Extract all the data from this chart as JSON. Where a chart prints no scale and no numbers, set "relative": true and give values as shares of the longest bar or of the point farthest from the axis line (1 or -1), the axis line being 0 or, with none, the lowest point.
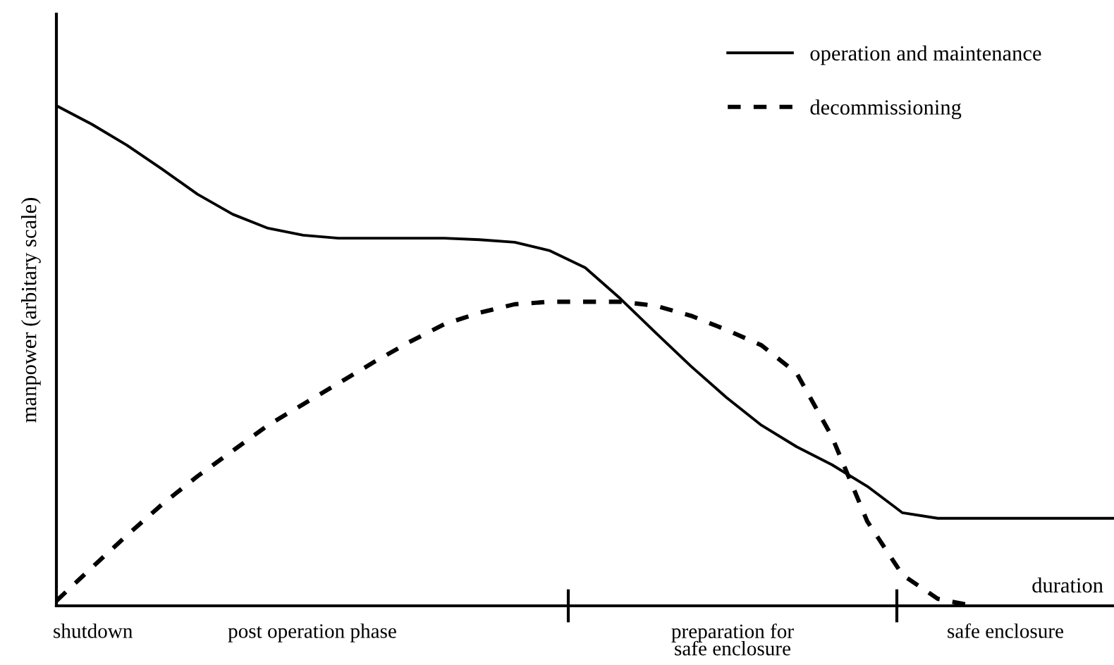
{
  "chart_data": {
    "type": "line",
    "relative": true,
    "ylabel": "manpower (arbitary scale)",
    "xlabel": "duration",
    "categories": [
      null,
      null,
      null,
      null,
      null,
      null,
      null,
      null,
      null,
      null,
      null,
      null,
      null,
      null,
      null,
      null,
      null,
      null,
      null,
      null,
      null,
      null,
      null,
      null,
      null,
      null,
      null,
      null,
      null,
      null,
      null
    ],
    "series": [
      {
        "name": "operation and maintenance",
        "color": "#000000",
        "line_style": "solid",
        "values": [
          1.0,
          0.963,
          0.921,
          0.873,
          0.823,
          0.783,
          0.755,
          0.741,
          0.735,
          0.735,
          0.735,
          0.735,
          0.732,
          0.727,
          0.71,
          0.676,
          0.614,
          0.546,
          0.479,
          0.417,
          0.361,
          0.318,
          0.282,
          0.239,
          0.186,
          0.175,
          0.175,
          0.175,
          0.175,
          0.175,
          0.175
        ]
      },
      {
        "name": "decommissioning",
        "color": "#000000",
        "line_style": "dashed",
        "values": [
          0.01,
          0.076,
          0.141,
          0.203,
          0.259,
          0.31,
          0.361,
          0.403,
          0.445,
          0.487,
          0.527,
          0.563,
          0.586,
          0.603,
          0.608,
          0.608,
          0.608,
          0.6,
          0.58,
          0.552,
          0.521,
          0.465,
          0.338,
          0.169,
          0.062,
          0.014,
          0.0,
          null,
          null,
          null,
          null
        ]
      }
    ],
    "legend": "top right",
    "annotations": [
      "shutdown",
      "post operation phase",
      "preparation for\nsafe enclosure",
      "safe enclosure"
    ]
  }
}
